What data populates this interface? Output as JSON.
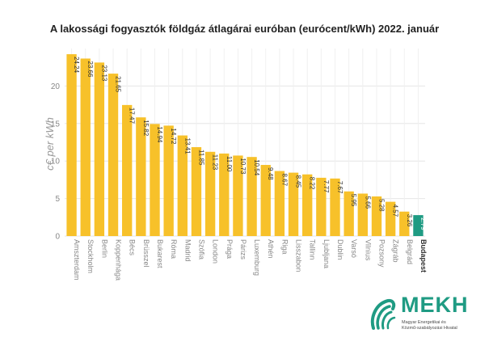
{
  "chart_data": {
    "type": "bar",
    "title": "A lakossági fogyasztók földgáz átlagárai euróban (eurócent/kWh) 2022. január",
    "ylabel": "c€ per kWh",
    "xlabel": "",
    "ylim": [
      0,
      25
    ],
    "yticks": [
      0,
      5,
      10,
      15,
      20
    ],
    "grid": true,
    "categories": [
      "Amszterdam",
      "Stockholm",
      "Berlin",
      "Koppenhága",
      "Bécs",
      "Brüsszel",
      "Bukarest",
      "Róma",
      "Madrid",
      "Szófia",
      "London",
      "Prága",
      "Párizs",
      "Luxemburg",
      "Athén",
      "Riga",
      "Lisszabon",
      "Tallinn",
      "Ljubljana",
      "Dublin",
      "Varsó",
      "Vilnius",
      "Pozsony",
      "Zágráb",
      "Belgrád",
      "Budapest"
    ],
    "values": [
      24.24,
      23.66,
      23.13,
      21.65,
      17.47,
      15.82,
      14.94,
      14.72,
      13.41,
      11.85,
      11.23,
      11.0,
      10.73,
      10.54,
      9.48,
      8.67,
      8.45,
      8.22,
      7.77,
      7.67,
      5.95,
      5.66,
      5.28,
      4.57,
      3.26,
      2.79
    ],
    "value_labels": [
      "24.24",
      "23.66",
      "23.13",
      "21.65",
      "17.47",
      "15.82",
      "14.94",
      "14.72",
      "13.41",
      "11.85",
      "11.23",
      "11.00",
      "10.73",
      "10.54",
      "9.48",
      "8.67",
      "8.45",
      "8.22",
      "7.77",
      "7.67",
      "5.95",
      "5.66",
      "5.28",
      "4.57",
      "3.26",
      "2.79"
    ],
    "colors": {
      "default": "#f7c12a",
      "highlight": "#1f9b83",
      "highlight_category": "Budapest"
    }
  },
  "logo": {
    "name": "MEKH",
    "subtitle_line1": "Magyar Energetikai és",
    "subtitle_line2": "Közmű-szabályozási Hivatal",
    "icon": "mekh-logo-icon",
    "color": "#1f9b83"
  }
}
